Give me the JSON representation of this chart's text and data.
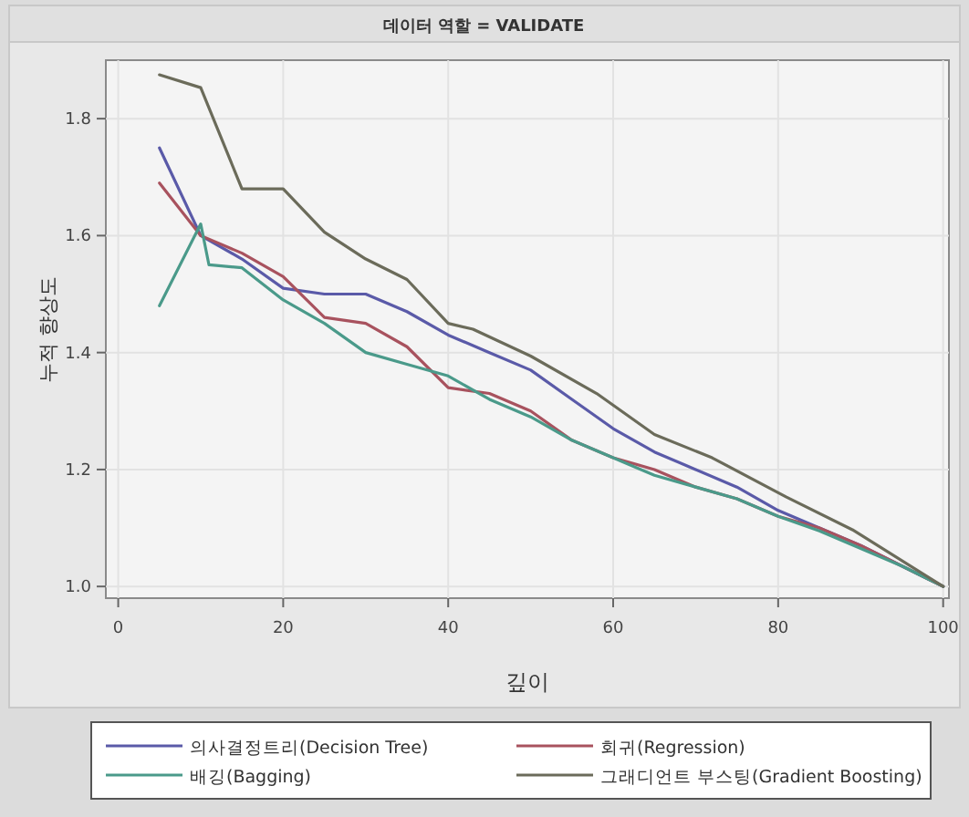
{
  "chart_data": {
    "type": "line",
    "title": "데이터 역할 = VALIDATE",
    "xlabel": "깊이",
    "ylabel": "누적 향상도",
    "xlim": [
      -1.5,
      100.7
    ],
    "ylim": [
      0.98,
      1.9
    ],
    "xticks": [
      0,
      20,
      40,
      60,
      80,
      100
    ],
    "yticks": [
      {
        "value": 1.0,
        "label": "1.0"
      },
      {
        "value": 1.2,
        "label": "1.2"
      },
      {
        "value": 1.4,
        "label": "1.4"
      },
      {
        "value": 1.6,
        "label": "1.6"
      },
      {
        "value": 1.8,
        "label": "1.8"
      }
    ],
    "grid": true,
    "legend": "bottom",
    "marker": "none",
    "line_style": "solid",
    "series": [
      {
        "name": "의사결정트리(Decision Tree)",
        "color": "#5a5aa8",
        "x": [
          5,
          10,
          15,
          20,
          25,
          30,
          35,
          40,
          45,
          50,
          55,
          60,
          65,
          70,
          75,
          80,
          85,
          90,
          95,
          100
        ],
        "values": [
          1.75,
          1.6,
          1.56,
          1.51,
          1.5,
          1.5,
          1.47,
          1.43,
          1.4,
          1.37,
          1.32,
          1.27,
          1.23,
          1.2,
          1.17,
          1.13,
          1.1,
          1.07,
          1.035,
          1.0
        ]
      },
      {
        "name": "회귀(Regression)",
        "color": "#a8525e",
        "x": [
          5,
          10,
          15,
          20,
          25,
          30,
          35,
          40,
          45,
          50,
          55,
          60,
          65,
          70,
          75,
          80,
          85,
          90,
          95,
          100
        ],
        "values": [
          1.69,
          1.6,
          1.57,
          1.53,
          1.46,
          1.45,
          1.41,
          1.34,
          1.33,
          1.3,
          1.25,
          1.22,
          1.2,
          1.17,
          1.15,
          1.12,
          1.1,
          1.07,
          1.035,
          1.0
        ]
      },
      {
        "name": "배깅(Bagging)",
        "color": "#4a9a8a",
        "x": [
          5,
          10,
          11,
          15,
          20,
          25,
          30,
          35,
          40,
          45,
          50,
          55,
          60,
          65,
          70,
          75,
          80,
          85,
          90,
          95,
          100
        ],
        "values": [
          1.48,
          1.62,
          1.55,
          1.545,
          1.49,
          1.45,
          1.4,
          1.38,
          1.36,
          1.32,
          1.29,
          1.25,
          1.22,
          1.19,
          1.17,
          1.15,
          1.12,
          1.095,
          1.065,
          1.035,
          1.0
        ]
      },
      {
        "name": "그래디언트 부스팅(Gradient Boosting)",
        "color": "#6b6b5a",
        "x": [
          5,
          10,
          15,
          20,
          25,
          30,
          35,
          40,
          43,
          50,
          58,
          65,
          72,
          81,
          89,
          100
        ],
        "values": [
          1.875,
          1.853,
          1.68,
          1.68,
          1.606,
          1.56,
          1.525,
          1.45,
          1.44,
          1.394,
          1.33,
          1.26,
          1.22,
          1.153,
          1.097,
          1.0
        ]
      }
    ]
  }
}
